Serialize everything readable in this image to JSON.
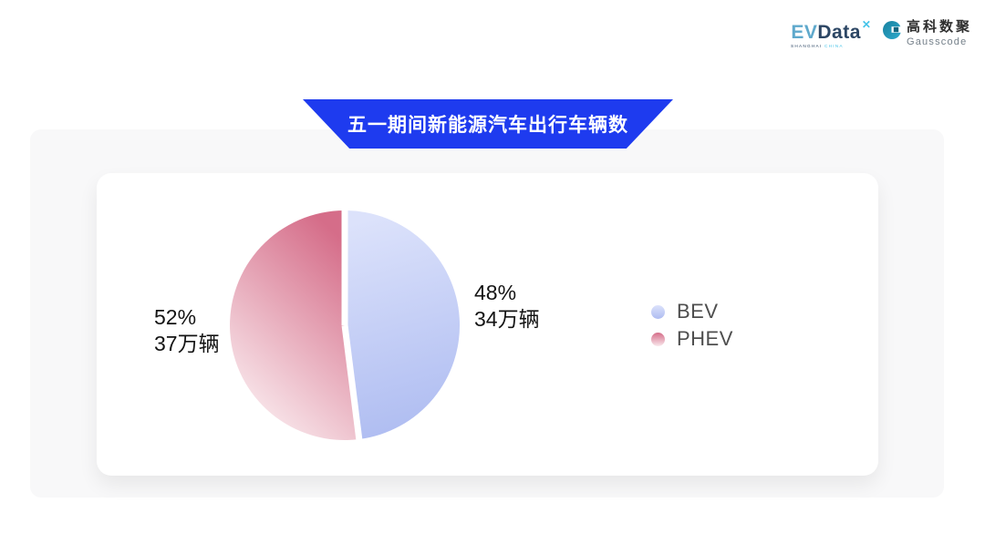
{
  "header": {
    "evdata_logo": {
      "ev": "EV",
      "data": "Data",
      "sup": "✕",
      "sub_shanghai": "SHANGHAI",
      "sub_china": "CHINA"
    },
    "gausscode_logo": {
      "cn": "高科数聚",
      "en": "Gausscode"
    }
  },
  "banner": {
    "title": "五一期间新能源汽车出行车辆数"
  },
  "chart_data": {
    "type": "pie",
    "title": "五一期间新能源汽车出行车辆数",
    "unit": "万辆",
    "start_angle_deg": 0,
    "clockwise": true,
    "gap_color": "#ffffff",
    "legend_position": "right",
    "slices": [
      {
        "name": "BEV",
        "percent": 48,
        "value": 34,
        "pct_label": "48%",
        "value_label": "34万辆",
        "gradient": [
          "#DCE2FB",
          "#AEBCF1"
        ],
        "gradient_dir_deg": 172
      },
      {
        "name": "PHEV",
        "percent": 52,
        "value": 37,
        "pct_label": "52%",
        "value_label": "37万辆",
        "gradient": [
          "#D56D89",
          "#F9E8EC"
        ],
        "gradient_dir_deg": 208
      }
    ]
  },
  "colors": {
    "banner_blue": "#1E3BEF",
    "panel_bg": "#F8F8F9",
    "card_bg": "#FFFFFF",
    "label_text": "#141414",
    "legend_text": "#4E4E4E"
  }
}
